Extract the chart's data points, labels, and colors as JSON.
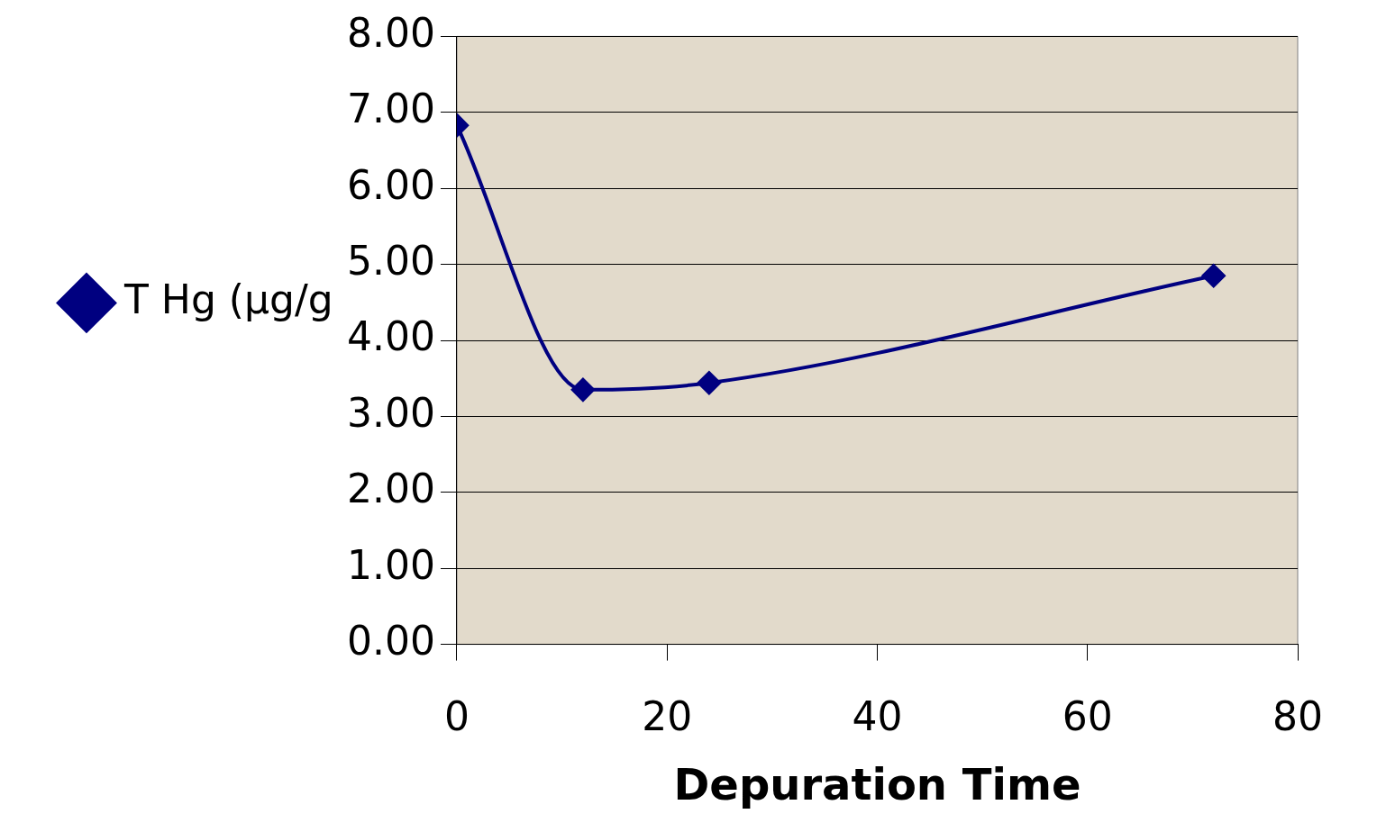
{
  "chart_data": {
    "type": "line",
    "xlabel": "Depuration Time",
    "x": [
      0,
      12,
      24,
      72
    ],
    "series": [
      {
        "name": "T Hg (µg/g",
        "color": "#000080",
        "values": [
          6.83,
          3.35,
          3.44,
          4.85
        ]
      }
    ],
    "xlim": [
      0,
      80
    ],
    "xticks": [
      0,
      20,
      40,
      60,
      80
    ],
    "ylim": [
      0,
      8
    ],
    "yticks": [
      {
        "value": 0,
        "label": "0.00"
      },
      {
        "value": 1,
        "label": "1.00"
      },
      {
        "value": 2,
        "label": "2.00"
      },
      {
        "value": 3,
        "label": "3.00"
      },
      {
        "value": 4,
        "label": "4.00"
      },
      {
        "value": 5,
        "label": "5.00"
      },
      {
        "value": 6,
        "label": "6.00"
      },
      {
        "value": 7,
        "label": "7.00"
      },
      {
        "value": 8,
        "label": "8.00"
      }
    ],
    "grid": "y",
    "legend": "left",
    "marker": "diamond",
    "line_style": "solid"
  }
}
